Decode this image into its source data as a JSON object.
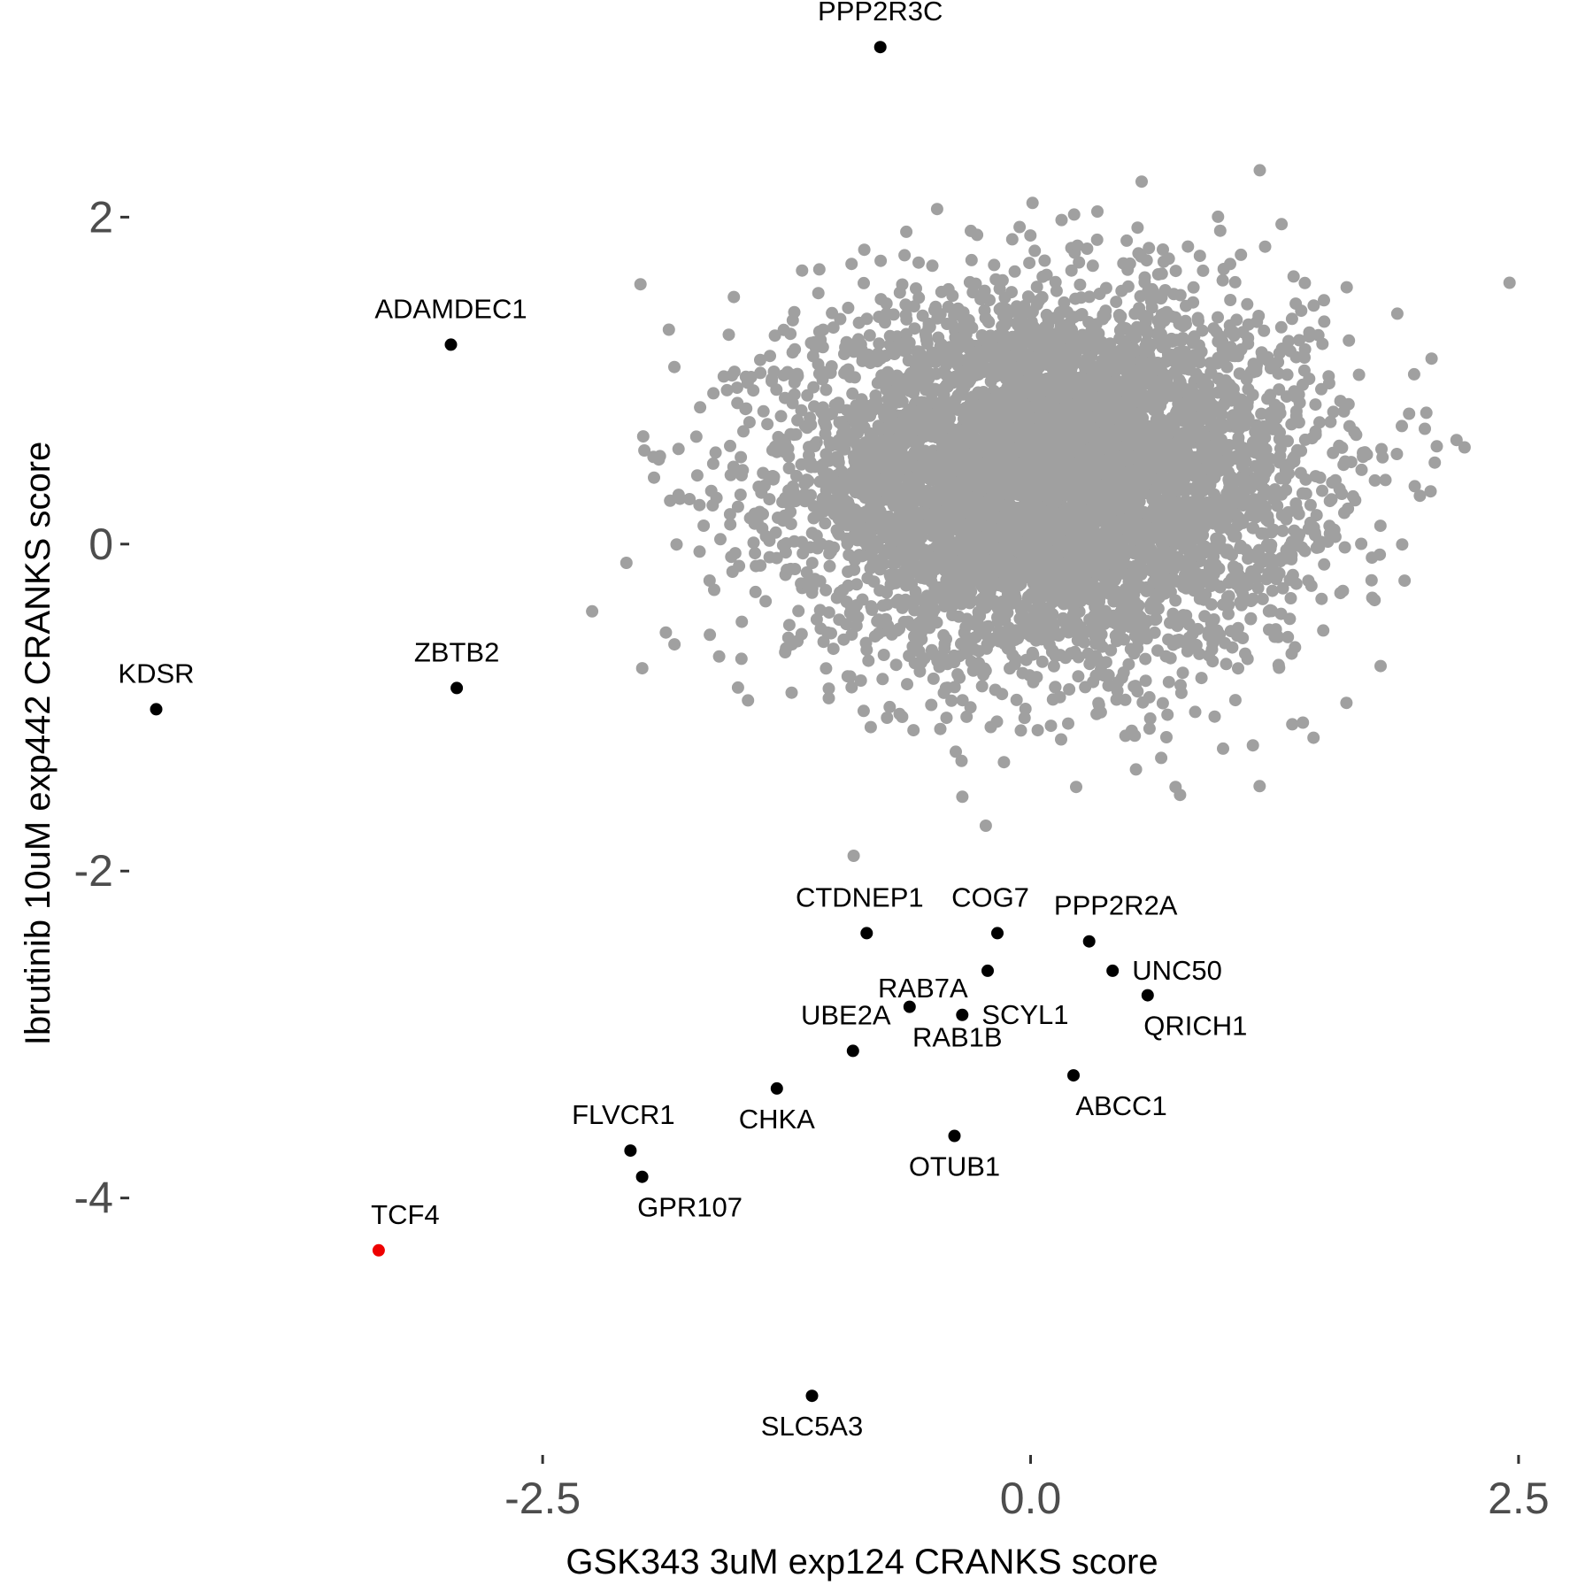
{
  "chart_data": {
    "type": "scatter",
    "title": "",
    "xlabel": "GSK343 3uM exp124 CRANKS score",
    "ylabel": "Ibrutinib 10uM exp442 CRANKS score",
    "xlim": [
      -4.6,
      2.7
    ],
    "ylim": [
      -5.55,
      3.22
    ],
    "x_ticks": [
      {
        "value": -2.5,
        "label": "-2.5"
      },
      {
        "value": 0.0,
        "label": "0.0"
      },
      {
        "value": 2.5,
        "label": "2.5"
      }
    ],
    "y_ticks": [
      {
        "value": 2,
        "label": "2"
      },
      {
        "value": 0,
        "label": "0"
      },
      {
        "value": -2,
        "label": "-2"
      },
      {
        "value": -4,
        "label": "-4"
      }
    ],
    "grid": false,
    "background_points": {
      "description_of_color": "grey",
      "color": "#a0a0a0",
      "approx_count": 6000,
      "center": [
        0.1,
        0.4
      ],
      "x_sd": 0.65,
      "y_sd": 0.55,
      "x_range": [
        -2.4,
        2.7
      ],
      "y_range": [
        -2.4,
        2.6
      ]
    },
    "colors": {
      "background": "#a0a0a0",
      "highlight": "#000000",
      "target": "#ee0000"
    },
    "points": [
      {
        "label": "PPP2R3C",
        "x": -0.77,
        "y": 3.04,
        "color": "#000000",
        "label_pos": "above"
      },
      {
        "label": "ADAMDEC1",
        "x": -2.97,
        "y": 1.22,
        "color": "#000000",
        "label_pos": "above"
      },
      {
        "label": "KDSR",
        "x": -4.48,
        "y": -1.01,
        "color": "#000000",
        "label_pos": "above"
      },
      {
        "label": "ZBTB2",
        "x": -2.94,
        "y": -0.88,
        "color": "#000000",
        "label_pos": "above"
      },
      {
        "label": "CTDNEP1",
        "x": -0.84,
        "y": -2.38,
        "color": "#000000",
        "label_pos": "above-left"
      },
      {
        "label": "COG7",
        "x": -0.17,
        "y": -2.38,
        "color": "#000000",
        "label_pos": "above-left"
      },
      {
        "label": "PPP2R2A",
        "x": 0.3,
        "y": -2.43,
        "color": "#000000",
        "label_pos": "above-right"
      },
      {
        "label": "UNC50",
        "x": 0.42,
        "y": -2.61,
        "color": "#000000",
        "label_pos": "right"
      },
      {
        "label": "RAB7A",
        "x": -0.22,
        "y": -2.61,
        "color": "#000000",
        "label_pos": "left-low"
      },
      {
        "label": "QRICH1",
        "x": 0.6,
        "y": -2.76,
        "color": "#000000",
        "label_pos": "below-right"
      },
      {
        "label": "SCYL1",
        "x": -0.35,
        "y": -2.88,
        "color": "#000000",
        "label_pos": "right"
      },
      {
        "label": "RAB1B",
        "x": -0.62,
        "y": -2.83,
        "color": "#000000",
        "label_pos": "below-right"
      },
      {
        "label": "UBE2A",
        "x": -0.91,
        "y": -3.1,
        "color": "#000000",
        "label_pos": "above-left"
      },
      {
        "label": "ABCC1",
        "x": 0.22,
        "y": -3.25,
        "color": "#000000",
        "label_pos": "below-right"
      },
      {
        "label": "CHKA",
        "x": -1.3,
        "y": -3.33,
        "color": "#000000",
        "label_pos": "below"
      },
      {
        "label": "OTUB1",
        "x": -0.39,
        "y": -3.62,
        "color": "#000000",
        "label_pos": "below"
      },
      {
        "label": "FLVCR1",
        "x": -2.05,
        "y": -3.71,
        "color": "#000000",
        "label_pos": "above-left"
      },
      {
        "label": "GPR107",
        "x": -1.99,
        "y": -3.87,
        "color": "#000000",
        "label_pos": "below-right"
      },
      {
        "label": "TCF4",
        "x": -3.34,
        "y": -4.32,
        "color": "#ee0000",
        "label_pos": "above-right"
      },
      {
        "label": "SLC5A3",
        "x": -1.12,
        "y": -5.21,
        "color": "#000000",
        "label_pos": "below"
      }
    ]
  }
}
